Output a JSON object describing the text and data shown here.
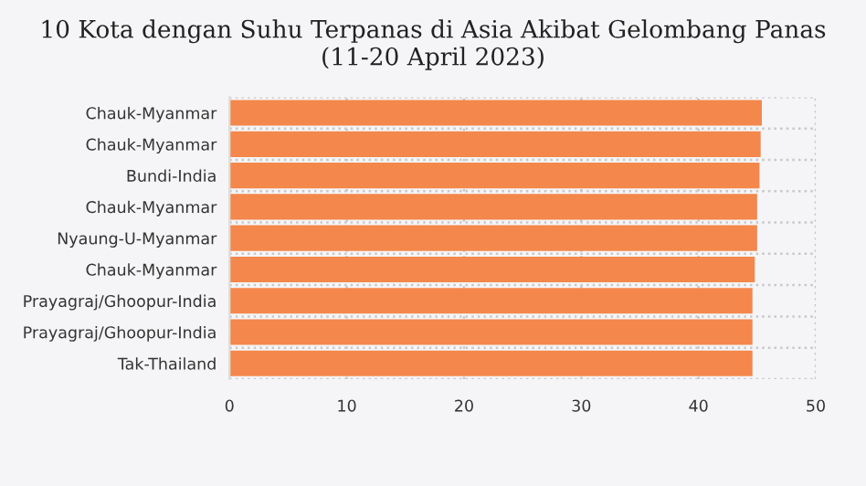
{
  "chart_data": {
    "type": "bar",
    "orientation": "horizontal",
    "title": "10 Kota dengan Suhu Terpanas di Asia Akibat Gelombang Panas (11-20 April 2023)",
    "categories": [
      "Chauk-Myanmar",
      "Chauk-Myanmar",
      "Bundi-India",
      "Chauk-Myanmar",
      "Nyaung-U-Myanmar",
      "Chauk-Myanmar",
      "Prayagraj/Ghoopur-India",
      "Prayagraj/Ghoopur-India",
      "Tak-Thailand"
    ],
    "values": [
      45.4,
      45.3,
      45.2,
      45.0,
      45.0,
      44.8,
      44.6,
      44.6,
      44.6
    ],
    "color": "#f4874b",
    "xlim": [
      0,
      50
    ],
    "xticks": [
      0,
      10,
      20,
      30,
      40,
      50
    ],
    "grid": true
  }
}
